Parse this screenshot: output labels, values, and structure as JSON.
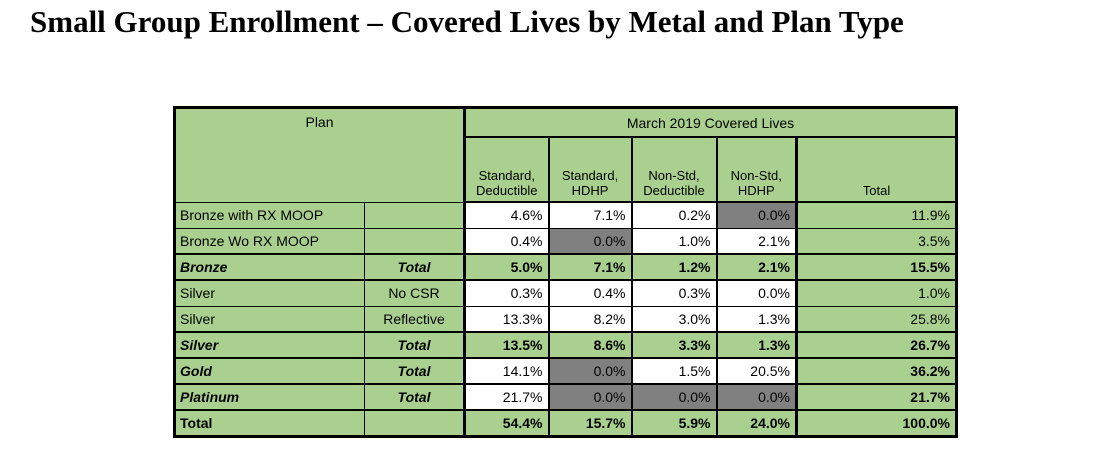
{
  "title": "Small Group Enrollment – Covered Lives by Metal and Plan Type",
  "colors": {
    "cell_green": "#A9D08E",
    "cell_gray": "#808080",
    "cell_white": "#FFFFFF",
    "border": "#000000",
    "text": "#000000"
  },
  "table": {
    "plan_header": "Plan",
    "group_header": "March 2019 Covered Lives",
    "columns": [
      "Standard,\nDeductible",
      "Standard,\nHDHP",
      "Non-Std,\nDeductible",
      "Non-Std,\nHDHP",
      "Total"
    ],
    "rows": [
      {
        "label": "Bronze with RX MOOP",
        "label_style": "plain",
        "sub": "",
        "sub_style": "plain",
        "sep": "thin",
        "cells": [
          {
            "v": "4.6%",
            "bg": "white",
            "bold": false
          },
          {
            "v": "7.1%",
            "bg": "white",
            "bold": false
          },
          {
            "v": "0.2%",
            "bg": "white",
            "bold": false
          },
          {
            "v": "0.0%",
            "bg": "gray",
            "bold": false
          },
          {
            "v": "11.9%",
            "bg": "green",
            "bold": false
          }
        ]
      },
      {
        "label": "Bronze Wo RX MOOP",
        "label_style": "plain",
        "sub": "",
        "sub_style": "plain",
        "sep": "thin",
        "cells": [
          {
            "v": "0.4%",
            "bg": "white",
            "bold": false
          },
          {
            "v": "0.0%",
            "bg": "gray",
            "bold": false
          },
          {
            "v": "1.0%",
            "bg": "white",
            "bold": false
          },
          {
            "v": "2.1%",
            "bg": "white",
            "bold": false
          },
          {
            "v": "3.5%",
            "bg": "green",
            "bold": false
          }
        ]
      },
      {
        "label": "Bronze",
        "label_style": "bold-italic",
        "sub": "Total",
        "sub_style": "bold-italic",
        "sep": "thick",
        "cells": [
          {
            "v": "5.0%",
            "bg": "green",
            "bold": true
          },
          {
            "v": "7.1%",
            "bg": "green",
            "bold": true
          },
          {
            "v": "1.2%",
            "bg": "green",
            "bold": true
          },
          {
            "v": "2.1%",
            "bg": "green",
            "bold": true
          },
          {
            "v": "15.5%",
            "bg": "green",
            "bold": true
          }
        ]
      },
      {
        "label": "Silver",
        "label_style": "plain",
        "sub": "No CSR",
        "sub_style": "plain",
        "sep": "thick",
        "cells": [
          {
            "v": "0.3%",
            "bg": "white",
            "bold": false
          },
          {
            "v": "0.4%",
            "bg": "white",
            "bold": false
          },
          {
            "v": "0.3%",
            "bg": "white",
            "bold": false
          },
          {
            "v": "0.0%",
            "bg": "white",
            "bold": false
          },
          {
            "v": "1.0%",
            "bg": "green",
            "bold": false
          }
        ]
      },
      {
        "label": "Silver",
        "label_style": "plain",
        "sub": "Reflective",
        "sub_style": "plain",
        "sep": "thin",
        "cells": [
          {
            "v": "13.3%",
            "bg": "white",
            "bold": false
          },
          {
            "v": "8.2%",
            "bg": "white",
            "bold": false
          },
          {
            "v": "3.0%",
            "bg": "white",
            "bold": false
          },
          {
            "v": "1.3%",
            "bg": "white",
            "bold": false
          },
          {
            "v": "25.8%",
            "bg": "green",
            "bold": false
          }
        ]
      },
      {
        "label": "Silver",
        "label_style": "bold-italic",
        "sub": "Total",
        "sub_style": "bold-italic",
        "sep": "thick",
        "cells": [
          {
            "v": "13.5%",
            "bg": "green",
            "bold": true
          },
          {
            "v": "8.6%",
            "bg": "green",
            "bold": true
          },
          {
            "v": "3.3%",
            "bg": "green",
            "bold": true
          },
          {
            "v": "1.3%",
            "bg": "green",
            "bold": true
          },
          {
            "v": "26.7%",
            "bg": "green",
            "bold": true
          }
        ]
      },
      {
        "label": "Gold",
        "label_style": "bold-italic",
        "sub": "Total",
        "sub_style": "bold-italic",
        "sep": "thick",
        "cells": [
          {
            "v": "14.1%",
            "bg": "white",
            "bold": false
          },
          {
            "v": "0.0%",
            "bg": "gray",
            "bold": false
          },
          {
            "v": "1.5%",
            "bg": "white",
            "bold": false
          },
          {
            "v": "20.5%",
            "bg": "white",
            "bold": false
          },
          {
            "v": "36.2%",
            "bg": "green",
            "bold": true
          }
        ]
      },
      {
        "label": "Platinum",
        "label_style": "bold-italic",
        "sub": "Total",
        "sub_style": "bold-italic",
        "sep": "thick",
        "cells": [
          {
            "v": "21.7%",
            "bg": "white",
            "bold": false
          },
          {
            "v": "0.0%",
            "bg": "gray",
            "bold": false
          },
          {
            "v": "0.0%",
            "bg": "gray",
            "bold": false
          },
          {
            "v": "0.0%",
            "bg": "gray",
            "bold": false
          },
          {
            "v": "21.7%",
            "bg": "green",
            "bold": true
          }
        ]
      },
      {
        "label": "Total",
        "label_style": "bold",
        "sub": "",
        "sub_style": "plain",
        "sep": "thick",
        "cells": [
          {
            "v": "54.4%",
            "bg": "green",
            "bold": true
          },
          {
            "v": "15.7%",
            "bg": "green",
            "bold": true
          },
          {
            "v": "5.9%",
            "bg": "green",
            "bold": true
          },
          {
            "v": "24.0%",
            "bg": "green",
            "bold": true
          },
          {
            "v": "100.0%",
            "bg": "green",
            "bold": true
          }
        ]
      }
    ]
  }
}
